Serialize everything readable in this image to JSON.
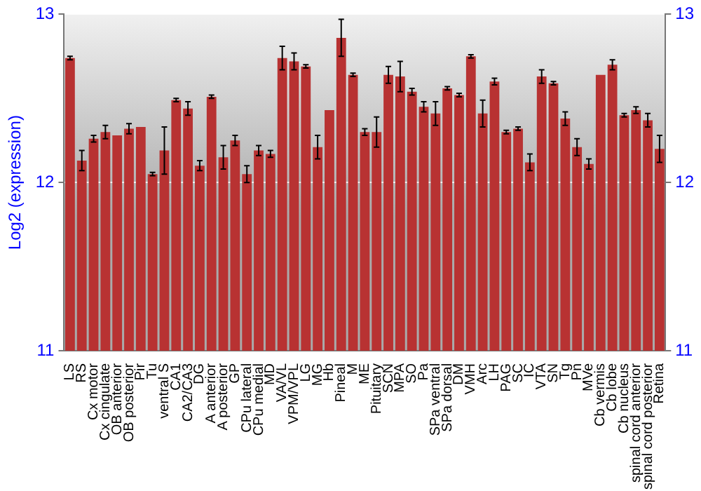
{
  "chart_data": {
    "type": "bar",
    "ylabel": "Log2 (expression)",
    "categories": [
      "LS",
      "RS",
      "Cx motor",
      "Cx cingulate",
      "OB anterior",
      "OB posterior",
      "Pir",
      "Tu",
      "ventral S",
      "CA1",
      "CA2/CA3",
      "DG",
      "A anterior",
      "A posterior",
      "GP",
      "CPu lateral",
      "CPu medial",
      "MD",
      "VA/VL",
      "VPM/VPL",
      "LG",
      "MG",
      "Hb",
      "Pineal",
      "M",
      "ME",
      "Pituitary",
      "SCN",
      "MPA",
      "SO",
      "Pa",
      "SPa ventral",
      "SPa dorsal",
      "DM",
      "VMH",
      "Arc",
      "LH",
      "PAG",
      "SC",
      "IC",
      "VTA",
      "SN",
      "Tg",
      "Pn",
      "MVe",
      "Cb vermis",
      "Cb lobe",
      "Cb nucleus",
      "spinal cord anterior",
      "spinal cord posterior",
      "Retina"
    ],
    "values": [
      12.74,
      12.13,
      12.26,
      12.3,
      12.28,
      12.32,
      12.33,
      12.05,
      12.19,
      12.49,
      12.44,
      12.1,
      12.51,
      12.15,
      12.25,
      12.05,
      12.19,
      12.17,
      12.74,
      12.72,
      12.69,
      12.21,
      12.43,
      12.86,
      12.64,
      12.3,
      12.3,
      12.64,
      12.63,
      12.54,
      12.45,
      12.41,
      12.56,
      12.52,
      12.75,
      12.41,
      12.6,
      12.3,
      12.32,
      12.12,
      12.63,
      12.59,
      12.38,
      12.21,
      12.11,
      12.64,
      12.7,
      12.4,
      12.43,
      12.37,
      12.2
    ],
    "errors": [
      0.01,
      0.06,
      0.02,
      0.04,
      null,
      0.03,
      null,
      0.01,
      0.14,
      0.01,
      0.04,
      0.03,
      0.01,
      0.07,
      0.03,
      0.05,
      0.03,
      0.02,
      0.07,
      0.05,
      0.01,
      0.07,
      null,
      0.11,
      0.01,
      0.02,
      0.09,
      0.05,
      0.09,
      0.02,
      0.03,
      0.07,
      0.01,
      0.01,
      0.01,
      0.08,
      0.02,
      0.01,
      0.01,
      0.05,
      0.04,
      0.01,
      0.04,
      0.05,
      0.03,
      null,
      0.03,
      0.01,
      0.02,
      0.04,
      0.08
    ],
    "color": "#b83232",
    "ylim": [
      11,
      13
    ],
    "yticks": [
      11,
      12,
      13
    ],
    "y2lim": [
      11,
      13
    ],
    "y2ticks": [
      11,
      12,
      13
    ],
    "grid": "y",
    "legend": false
  }
}
